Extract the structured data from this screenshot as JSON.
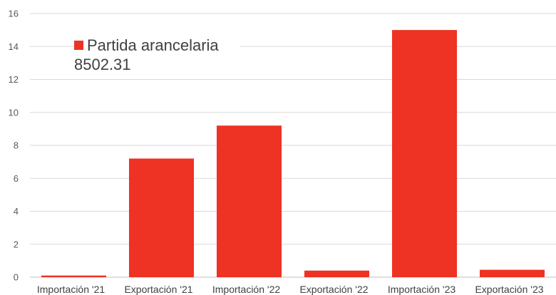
{
  "chart_data": {
    "type": "bar",
    "categories": [
      "Importación '21",
      "Exportación '21",
      "Importación '22",
      "Exportación '22",
      "Importación '23",
      "Exportación '23"
    ],
    "series": [
      {
        "name": "Partida arancelaria\n8502.31",
        "values": [
          0.1,
          7.2,
          9.2,
          0.4,
          15.0,
          0.45
        ]
      }
    ],
    "ylim": [
      0,
      16
    ],
    "yticks": [
      0,
      2,
      4,
      6,
      8,
      10,
      12,
      14,
      16
    ],
    "grid": true,
    "legend": "top-left",
    "title": "",
    "xlabel": "",
    "ylabel": ""
  },
  "colors": {
    "bar": "#EE3224",
    "grid": "#D9D9D9",
    "axis": "#BFBFBF"
  }
}
